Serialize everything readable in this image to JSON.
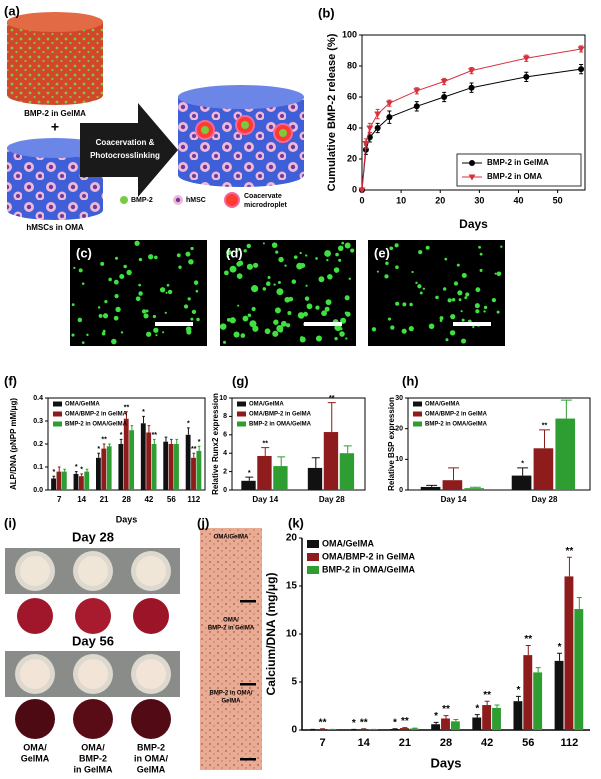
{
  "panels": [
    "(a)",
    "(b)",
    "(c)",
    "(d)",
    "(e)",
    "(f)",
    "(g)",
    "(h)",
    "(i)",
    "(j)",
    "(k)"
  ],
  "diagram": {
    "gel_label": "BMP-2 in GelMA",
    "plus": "+",
    "cell_label": "hMSCs in OMA",
    "arrow_label": [
      "Coacervation &",
      "Photocrosslinking"
    ],
    "legend": {
      "bmp2": "BMP-2",
      "hmsc": "hMSC",
      "coacervate": [
        "Coacervate",
        "microdroplet"
      ]
    }
  },
  "staining": {
    "day28": "Day 28",
    "day56": "Day 56",
    "groups": [
      [
        "OMA/",
        "GelMA"
      ],
      [
        "OMA/",
        "BMP-2",
        "in GelMA"
      ],
      [
        "BMP-2",
        "in OMA/",
        "GelMA"
      ]
    ]
  },
  "histology": {
    "groups": [
      [
        "OMA/GelMA"
      ],
      [
        "OMA/",
        "BMP-2 in GelMA"
      ],
      [
        "BMP-2 in OMA/",
        "GelMA"
      ]
    ]
  },
  "chart_data": [
    {
      "type": "line",
      "x": [
        0,
        1,
        2,
        4,
        7,
        14,
        21,
        28,
        42,
        56
      ],
      "xlim": [
        0,
        57
      ],
      "xticks": [
        0,
        10,
        20,
        30,
        40,
        50
      ],
      "ylim": [
        0,
        100
      ],
      "yticks": [
        0,
        20,
        40,
        60,
        80,
        100
      ],
      "xlabel": "Days",
      "ylabel": "Cumulative BMP-2 release (%)",
      "legend": "lower right",
      "series": [
        {
          "name": "BMP-2 in GelMA",
          "color": "#000000",
          "marker": "circle",
          "values": [
            0,
            26,
            34,
            40,
            47,
            54,
            60,
            66,
            73,
            78
          ],
          "errors": [
            0,
            3,
            3,
            3,
            4,
            3,
            3,
            3,
            3,
            3
          ]
        },
        {
          "name": "BMP-2 in OMA",
          "color": "#d8303e",
          "marker": "triangle",
          "values": [
            0,
            30,
            40,
            49,
            56,
            64,
            70,
            77,
            85,
            91
          ],
          "errors": [
            0,
            3,
            3,
            3,
            2,
            2,
            2,
            2,
            2,
            2
          ]
        }
      ]
    },
    {
      "type": "bar",
      "categories": [
        "7",
        "14",
        "21",
        "28",
        "42",
        "56",
        "112"
      ],
      "ylim": [
        0,
        0.4
      ],
      "yticks": [
        {
          "value": 0,
          "label": "0.0"
        },
        0.1,
        0.2,
        0.3,
        0.4
      ],
      "xlabel": "Days",
      "ylabel": "ALP/DNA (pNPP mM/μg)",
      "legend": "upper left",
      "series": [
        {
          "name": "OMA/GelMA",
          "color": "#111111",
          "values": [
            0.05,
            0.07,
            0.14,
            0.2,
            0.29,
            0.21,
            0.24
          ],
          "errors": [
            0.01,
            0.01,
            0.02,
            0.02,
            0.03,
            0.02,
            0.03
          ],
          "significance": [
            "*",
            "*",
            "*",
            "*",
            "*",
            null,
            "*"
          ]
        },
        {
          "name": "OMA/BMP-2 in GelMA",
          "color": "#8e1c1c",
          "values": [
            0.08,
            0.06,
            0.18,
            0.31,
            0.25,
            0.2,
            0.14
          ],
          "errors": [
            0.02,
            0.01,
            0.02,
            0.03,
            0.03,
            0.02,
            0.02
          ],
          "significance": [
            null,
            "*",
            "**",
            "**",
            null,
            null,
            "**"
          ]
        },
        {
          "name": "BMP-2 in OMA/GelMA",
          "color": "#2e9e33",
          "values": [
            0.08,
            0.08,
            0.19,
            0.26,
            0.2,
            0.2,
            0.17
          ],
          "errors": [
            0.01,
            0.01,
            0.01,
            0.02,
            0.02,
            0.02,
            0.02
          ],
          "significance": [
            null,
            null,
            null,
            null,
            "**",
            null,
            "*"
          ]
        }
      ]
    },
    {
      "type": "bar",
      "categories": [
        "Day 14",
        "Day 28"
      ],
      "ylim": [
        0,
        10
      ],
      "yticks": [
        0,
        2,
        4,
        6,
        8,
        10
      ],
      "ylabel": "Relative Runx2 expression",
      "legend": "upper left",
      "series": [
        {
          "name": "OMA/GelMA",
          "color": "#111111",
          "values": [
            1.0,
            2.4
          ],
          "errors": [
            0.4,
            1.1
          ],
          "significance": [
            "*",
            null
          ]
        },
        {
          "name": "OMA/BMP-2 in GelMA",
          "color": "#8e1c1c",
          "values": [
            3.7,
            6.3
          ],
          "errors": [
            0.9,
            3.2
          ],
          "significance": [
            "**",
            "**"
          ]
        },
        {
          "name": "BMP-2 in OMA/GelMA",
          "color": "#2e9e33",
          "values": [
            2.6,
            4.0
          ],
          "errors": [
            1.0,
            0.8
          ],
          "significance": [
            null,
            null
          ]
        }
      ]
    },
    {
      "type": "bar",
      "categories": [
        "Day 14",
        "Day 28"
      ],
      "ylim": [
        0,
        30
      ],
      "yticks": [
        0,
        10,
        20,
        30
      ],
      "ylabel": "Relative BSP expression",
      "legend": "upper left",
      "series": [
        {
          "name": "OMA/GelMA",
          "color": "#111111",
          "values": [
            1.0,
            4.7
          ],
          "errors": [
            0.5,
            2.5
          ],
          "significance": [
            null,
            "*"
          ]
        },
        {
          "name": "OMA/BMP-2 in GelMA",
          "color": "#8e1c1c",
          "values": [
            3.2,
            13.6
          ],
          "errors": [
            4.0,
            6.0
          ],
          "significance": [
            null,
            "**"
          ]
        },
        {
          "name": "BMP-2 in OMA/GelMA",
          "color": "#2e9e33",
          "values": [
            0.6,
            23.3
          ],
          "errors": [
            0.3,
            6.0
          ],
          "significance": [
            null,
            null
          ]
        }
      ]
    },
    {
      "type": "bar",
      "categories": [
        "7",
        "14",
        "21",
        "28",
        "42",
        "56",
        "112"
      ],
      "ylim": [
        0,
        20
      ],
      "yticks": [
        0,
        5,
        10,
        15,
        20
      ],
      "xlabel": "Days",
      "ylabel": "Calcium/DNA (mg/μg)",
      "legend": "upper left",
      "series": [
        {
          "name": "OMA/GelMA",
          "color": "#111111",
          "values": [
            0.05,
            0.05,
            0.1,
            0.6,
            1.3,
            3.0,
            7.2
          ],
          "errors": [
            0.02,
            0.02,
            0.03,
            0.2,
            0.3,
            0.5,
            0.8
          ],
          "significance": [
            null,
            "*",
            "*",
            "*",
            "*",
            "*",
            "*"
          ]
        },
        {
          "name": "OMA/BMP-2 in GelMA",
          "color": "#8e1c1c",
          "values": [
            0.1,
            0.1,
            0.2,
            1.2,
            2.6,
            7.8,
            16.0
          ],
          "errors": [
            0.03,
            0.03,
            0.05,
            0.3,
            0.4,
            1.0,
            2.0
          ],
          "significance": [
            "**",
            "**",
            "**",
            "**",
            "**",
            "**",
            "**"
          ]
        },
        {
          "name": "BMP-2 in OMA/GelMA",
          "color": "#2e9e33",
          "values": [
            0.05,
            0.05,
            0.15,
            0.9,
            2.3,
            6.0,
            12.6
          ],
          "errors": [
            0.02,
            0.02,
            0.04,
            0.2,
            0.3,
            0.5,
            1.2
          ],
          "significance": [
            null,
            null,
            null,
            null,
            null,
            null,
            null
          ]
        }
      ]
    }
  ]
}
